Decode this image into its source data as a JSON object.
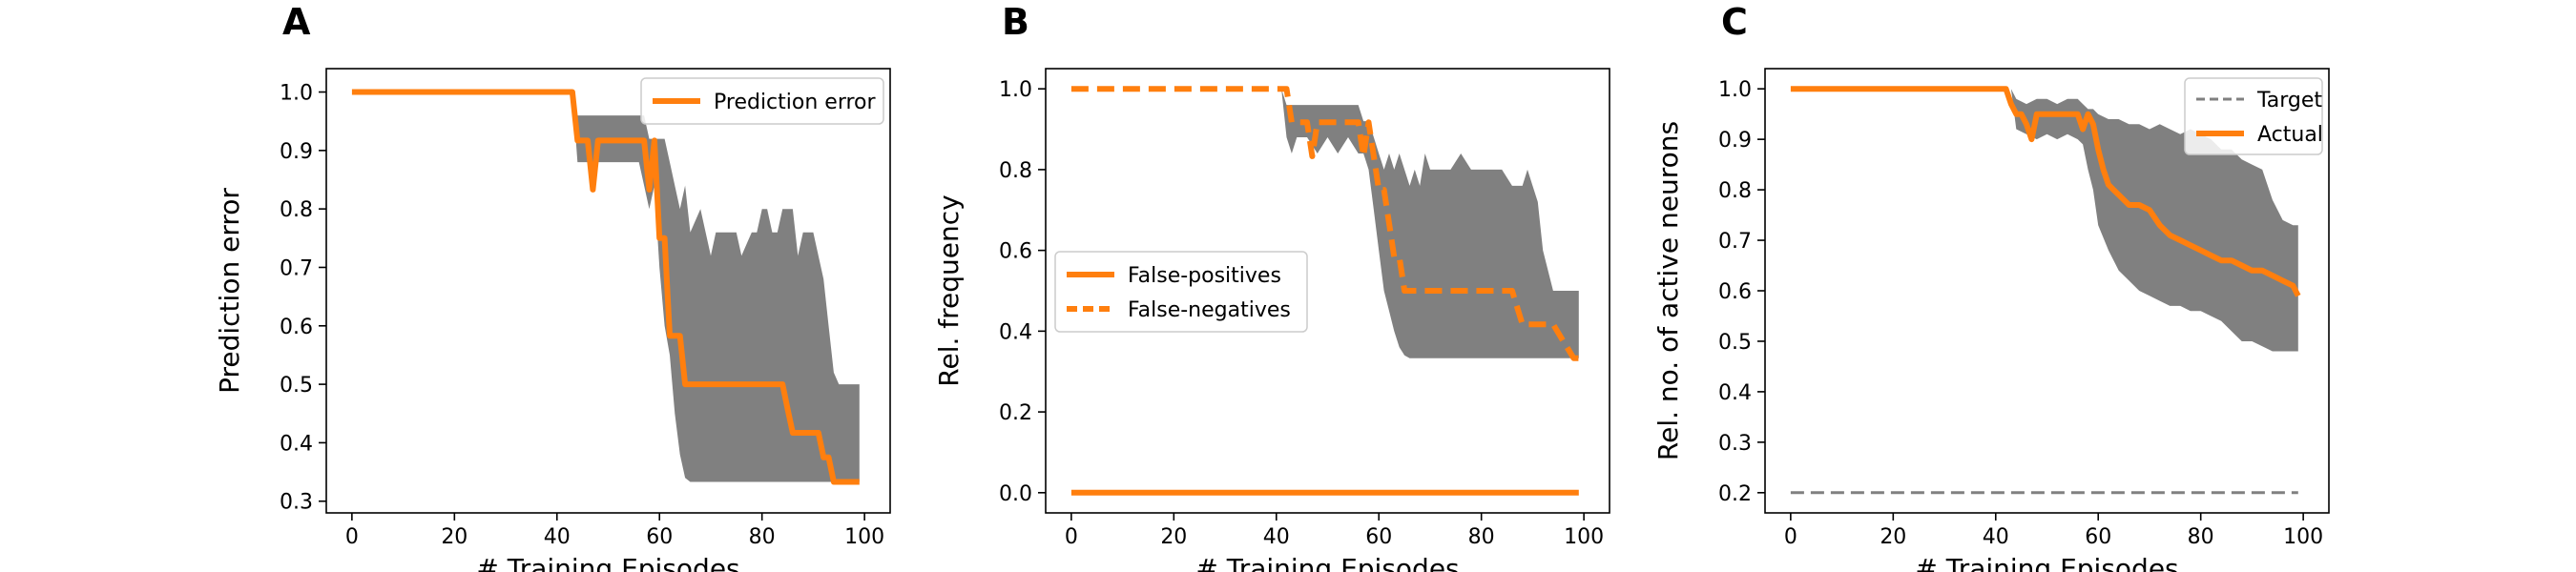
{
  "chart_data": [
    {
      "type": "line",
      "panel": "A",
      "xlabel": "# Training Episodes",
      "ylabel": "Prediction error",
      "xlim": [
        -5,
        105
      ],
      "ylim": [
        0.28,
        1.04
      ],
      "xticks": [
        0,
        20,
        40,
        60,
        80,
        100
      ],
      "yticks": [
        0.3,
        0.4,
        0.5,
        0.6,
        0.7,
        0.8,
        0.9,
        1.0
      ],
      "legend_position": "top-right",
      "colors": {
        "line": "#ff7f0e",
        "band": "#808080"
      },
      "band": {
        "x": [
          0,
          43,
          44,
          45,
          46,
          47,
          48,
          56,
          57,
          58,
          59,
          60,
          61,
          62,
          63,
          64,
          65,
          66,
          68,
          69,
          70,
          71,
          72,
          74,
          75,
          76,
          78,
          79,
          80,
          81,
          82,
          83,
          84,
          86,
          87,
          88,
          89,
          90,
          91,
          92,
          93,
          94,
          95,
          96,
          98,
          99
        ],
        "upper": [
          1.0,
          1.0,
          0.96,
          0.96,
          0.96,
          0.96,
          0.96,
          0.96,
          0.96,
          0.92,
          0.92,
          0.92,
          0.92,
          0.88,
          0.84,
          0.8,
          0.84,
          0.76,
          0.8,
          0.76,
          0.72,
          0.76,
          0.76,
          0.76,
          0.76,
          0.72,
          0.76,
          0.76,
          0.8,
          0.8,
          0.76,
          0.76,
          0.8,
          0.8,
          0.72,
          0.76,
          0.76,
          0.76,
          0.72,
          0.68,
          0.6,
          0.52,
          0.5,
          0.5,
          0.5,
          0.5
        ],
        "lower": [
          1.0,
          1.0,
          0.88,
          0.88,
          0.88,
          0.84,
          0.88,
          0.88,
          0.84,
          0.8,
          0.84,
          0.7,
          0.6,
          0.55,
          0.45,
          0.38,
          0.34,
          0.333,
          0.333,
          0.333,
          0.333,
          0.333,
          0.333,
          0.333,
          0.333,
          0.333,
          0.333,
          0.333,
          0.333,
          0.333,
          0.333,
          0.333,
          0.333,
          0.333,
          0.333,
          0.333,
          0.333,
          0.333,
          0.333,
          0.333,
          0.333,
          0.333,
          0.333,
          0.333,
          0.333,
          0.333
        ]
      },
      "series": [
        {
          "name": "Prediction error",
          "style": "solid",
          "x": [
            0,
            43,
            44,
            45,
            46,
            47,
            48,
            49,
            50,
            51,
            52,
            53,
            54,
            55,
            56,
            57,
            58,
            59,
            60,
            61,
            62,
            63,
            64,
            65,
            66,
            67,
            68,
            69,
            70,
            71,
            72,
            73,
            74,
            75,
            76,
            77,
            78,
            79,
            80,
            81,
            82,
            83,
            84,
            85,
            86,
            87,
            88,
            89,
            90,
            91,
            92,
            93,
            94,
            95,
            96,
            97,
            98,
            99
          ],
          "y": [
            1.0,
            1.0,
            0.917,
            0.917,
            0.917,
            0.833,
            0.917,
            0.917,
            0.917,
            0.917,
            0.917,
            0.917,
            0.917,
            0.917,
            0.917,
            0.917,
            0.833,
            0.917,
            0.75,
            0.75,
            0.583,
            0.583,
            0.583,
            0.5,
            0.5,
            0.5,
            0.5,
            0.5,
            0.5,
            0.5,
            0.5,
            0.5,
            0.5,
            0.5,
            0.5,
            0.5,
            0.5,
            0.5,
            0.5,
            0.5,
            0.5,
            0.5,
            0.5,
            0.458,
            0.417,
            0.417,
            0.417,
            0.417,
            0.417,
            0.417,
            0.375,
            0.375,
            0.333,
            0.333,
            0.333,
            0.333,
            0.333,
            0.333
          ]
        }
      ]
    },
    {
      "type": "line",
      "panel": "B",
      "xlabel": "# Training Episodes",
      "ylabel": "Rel. frequency",
      "xlim": [
        -5,
        105
      ],
      "ylim": [
        -0.05,
        1.05
      ],
      "xticks": [
        0,
        20,
        40,
        60,
        80,
        100
      ],
      "yticks": [
        0.0,
        0.2,
        0.4,
        0.6,
        0.8,
        1.0
      ],
      "legend_position": "center-left",
      "colors": {
        "line": "#ff7f0e",
        "band": "#808080"
      },
      "band": {
        "x": [
          0,
          41,
          42,
          43,
          44,
          46,
          48,
          50,
          52,
          54,
          56,
          57,
          58,
          59,
          60,
          61,
          62,
          63,
          64,
          65,
          66,
          67,
          68,
          69,
          70,
          72,
          74,
          76,
          78,
          79,
          80,
          82,
          84,
          86,
          88,
          89,
          90,
          91,
          92,
          94,
          95,
          96,
          98,
          99
        ],
        "upper": [
          1.0,
          1.0,
          0.96,
          0.96,
          0.96,
          0.96,
          0.96,
          0.96,
          0.96,
          0.96,
          0.96,
          0.92,
          0.92,
          0.88,
          0.84,
          0.8,
          0.84,
          0.8,
          0.84,
          0.8,
          0.76,
          0.8,
          0.76,
          0.84,
          0.8,
          0.8,
          0.8,
          0.84,
          0.8,
          0.8,
          0.8,
          0.8,
          0.8,
          0.76,
          0.76,
          0.8,
          0.76,
          0.72,
          0.6,
          0.5,
          0.5,
          0.5,
          0.5,
          0.5
        ],
        "lower": [
          1.0,
          1.0,
          0.88,
          0.84,
          0.88,
          0.88,
          0.84,
          0.88,
          0.84,
          0.88,
          0.84,
          0.84,
          0.8,
          0.7,
          0.6,
          0.5,
          0.45,
          0.4,
          0.36,
          0.34,
          0.333,
          0.333,
          0.333,
          0.333,
          0.333,
          0.333,
          0.333,
          0.333,
          0.333,
          0.333,
          0.333,
          0.333,
          0.333,
          0.333,
          0.333,
          0.333,
          0.333,
          0.333,
          0.333,
          0.333,
          0.333,
          0.333,
          0.333,
          0.333
        ]
      },
      "series": [
        {
          "name": "False-positives",
          "style": "solid",
          "x": [
            0,
            99
          ],
          "y": [
            0.0,
            0.0
          ]
        },
        {
          "name": "False-negatives",
          "style": "dashed",
          "x": [
            0,
            42,
            43,
            44,
            45,
            46,
            47,
            48,
            50,
            52,
            54,
            56,
            57,
            58,
            59,
            60,
            61,
            62,
            63,
            64,
            65,
            66,
            68,
            70,
            72,
            74,
            76,
            78,
            80,
            82,
            84,
            86,
            88,
            90,
            92,
            94,
            96,
            98,
            99
          ],
          "y": [
            1.0,
            1.0,
            0.917,
            0.917,
            0.917,
            0.917,
            0.833,
            0.917,
            0.917,
            0.917,
            0.917,
            0.917,
            0.833,
            0.917,
            0.833,
            0.75,
            0.75,
            0.667,
            0.583,
            0.583,
            0.5,
            0.5,
            0.5,
            0.5,
            0.5,
            0.5,
            0.5,
            0.5,
            0.5,
            0.5,
            0.5,
            0.5,
            0.417,
            0.417,
            0.417,
            0.417,
            0.375,
            0.333,
            0.333
          ]
        }
      ]
    },
    {
      "type": "line",
      "panel": "C",
      "xlabel": "# Training Episodes",
      "ylabel": "Rel. no. of active neurons",
      "xlim": [
        -5,
        105
      ],
      "ylim": [
        0.16,
        1.04
      ],
      "xticks": [
        0,
        20,
        40,
        60,
        80,
        100
      ],
      "yticks": [
        0.2,
        0.3,
        0.4,
        0.5,
        0.6,
        0.7,
        0.8,
        0.9,
        1.0
      ],
      "legend_position": "top-right",
      "colors": {
        "line": "#ff7f0e",
        "band": "#808080",
        "target": "#808080"
      },
      "band": {
        "x": [
          0,
          43,
          44,
          46,
          48,
          50,
          52,
          54,
          56,
          57,
          58,
          59,
          60,
          62,
          64,
          66,
          68,
          70,
          72,
          74,
          76,
          78,
          80,
          82,
          84,
          86,
          88,
          90,
          92,
          94,
          96,
          98,
          99
        ],
        "upper": [
          1.0,
          1.0,
          0.98,
          0.97,
          0.98,
          0.98,
          0.97,
          0.98,
          0.98,
          0.97,
          0.96,
          0.96,
          0.95,
          0.94,
          0.94,
          0.93,
          0.93,
          0.92,
          0.93,
          0.92,
          0.91,
          0.92,
          0.91,
          0.9,
          0.88,
          0.88,
          0.86,
          0.85,
          0.84,
          0.78,
          0.74,
          0.73,
          0.73
        ],
        "lower": [
          1.0,
          1.0,
          0.92,
          0.91,
          0.9,
          0.91,
          0.9,
          0.91,
          0.9,
          0.89,
          0.84,
          0.8,
          0.73,
          0.68,
          0.64,
          0.62,
          0.6,
          0.59,
          0.58,
          0.57,
          0.57,
          0.56,
          0.56,
          0.55,
          0.54,
          0.52,
          0.5,
          0.5,
          0.49,
          0.48,
          0.48,
          0.48,
          0.48
        ]
      },
      "target": {
        "name": "Target",
        "style": "dashed",
        "x": [
          0,
          99
        ],
        "y": [
          0.2,
          0.2
        ]
      },
      "series": [
        {
          "name": "Actual",
          "style": "solid",
          "x": [
            0,
            42,
            43,
            44,
            45,
            46,
            47,
            48,
            50,
            52,
            54,
            55,
            56,
            57,
            58,
            59,
            60,
            61,
            62,
            63,
            64,
            66,
            68,
            70,
            72,
            74,
            76,
            78,
            80,
            82,
            84,
            86,
            88,
            90,
            92,
            94,
            96,
            98,
            99
          ],
          "y": [
            1.0,
            1.0,
            0.97,
            0.95,
            0.95,
            0.93,
            0.9,
            0.95,
            0.95,
            0.95,
            0.95,
            0.95,
            0.95,
            0.92,
            0.95,
            0.93,
            0.88,
            0.84,
            0.81,
            0.8,
            0.79,
            0.77,
            0.77,
            0.76,
            0.73,
            0.71,
            0.7,
            0.69,
            0.68,
            0.67,
            0.66,
            0.66,
            0.65,
            0.64,
            0.64,
            0.63,
            0.62,
            0.61,
            0.59
          ]
        }
      ]
    }
  ]
}
